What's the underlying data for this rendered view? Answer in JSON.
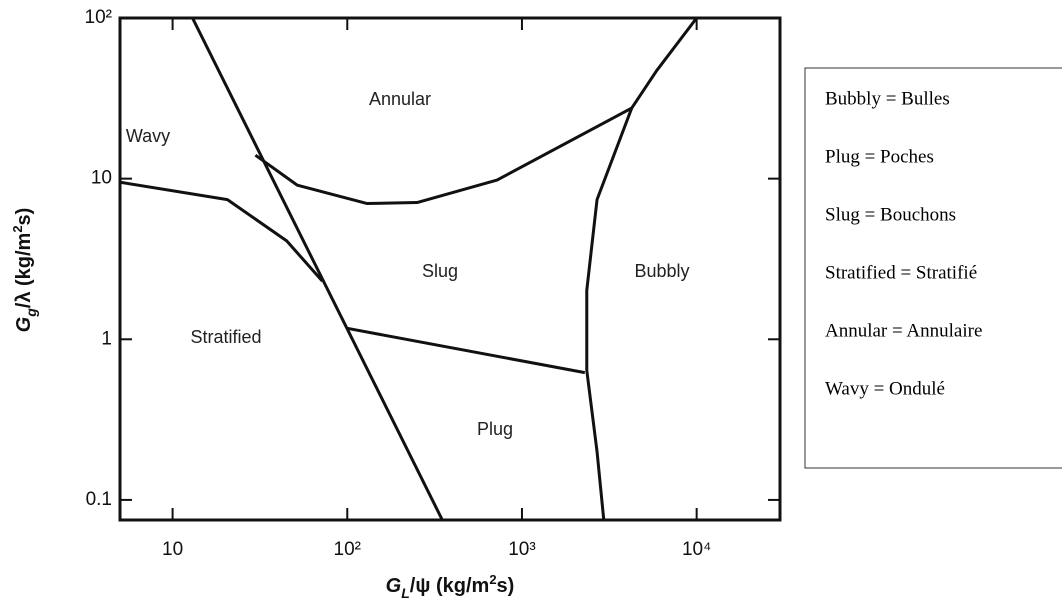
{
  "chart_data": {
    "type": "line",
    "x_label": {
      "symbol": "G",
      "subscript": "L",
      "unit_start": "/ψ  (kg/m",
      "superscript": "2",
      "unit_end": "s)"
    },
    "y_label": {
      "symbol": "G",
      "subscript": "g",
      "unit_start": "/λ  (kg/m",
      "superscript": "2",
      "unit_end": "s)"
    },
    "log_x": true,
    "log_y": true,
    "xlim": [
      5,
      30000
    ],
    "ylim": [
      0.075,
      100
    ],
    "xticks": [
      10,
      {
        "value": 100,
        "label": "10²"
      },
      {
        "value": 1000,
        "label": "10³"
      },
      {
        "value": 10000,
        "label": "10⁴"
      }
    ],
    "yticks": [
      0.1,
      1,
      10,
      {
        "value": 100,
        "label": "10²"
      }
    ],
    "color": "#111111",
    "curves": [
      {
        "x": [
          13,
          350
        ],
        "y": [
          100,
          0.075
        ]
      },
      {
        "x": [
          5,
          20.6,
          45,
          72
        ],
        "y": [
          9.5,
          7.4,
          4.1,
          2.3
        ]
      },
      {
        "x": [
          29.8,
          51.8,
          130,
          251,
          720,
          4250
        ],
        "y": [
          14,
          9.1,
          7.0,
          7.1,
          9.8,
          27.5
        ]
      },
      {
        "x": [
          10000,
          5900,
          4250,
          2690,
          2350,
          2350,
          2690,
          2940
        ],
        "y": [
          100,
          47,
          27.5,
          7.4,
          2.02,
          0.64,
          0.2,
          0.075
        ]
      },
      {
        "x": [
          100,
          2290
        ],
        "y": [
          1.17,
          0.62
        ]
      }
    ],
    "annotations": [
      "Annular",
      "Wavy",
      "Slug",
      "Bubbly",
      "Stratified",
      "Plug"
    ]
  },
  "legend_box": {
    "lines": [
      "Bubbly = Bulles",
      "Plug = Poches",
      "Slug = Bouchons",
      "Stratified = Stratifié",
      "Annular = Annulaire",
      "Wavy = Ondulé"
    ]
  }
}
